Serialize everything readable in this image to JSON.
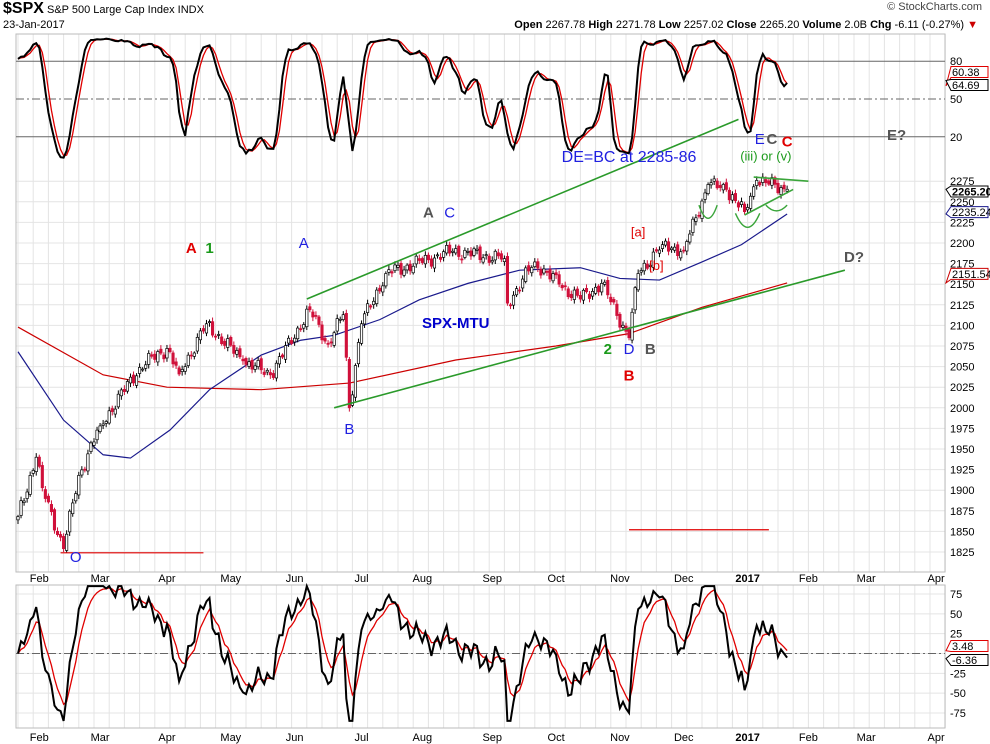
{
  "header": {
    "symbol": "$SPX",
    "name": "S&P 500 Large Cap Index",
    "exchange": "INDX",
    "date": "23-Jan-2017",
    "watermark": "© StockCharts.com",
    "open_label": "Open",
    "open": "2267.78",
    "high_label": "High",
    "high": "2271.78",
    "low_label": "Low",
    "low": "2257.02",
    "close_label": "Close",
    "close": "2265.20",
    "volume_label": "Volume",
    "volume": "2.0B",
    "chg_label": "Chg",
    "chg": "-6.11 (-0.27%)",
    "chg_arrow": "▼"
  },
  "chart_data": {
    "type": "candlestick",
    "title": "$SPX S&P 500 Large Cap Index INDX",
    "start_date": "2016-01-21",
    "holidays": [
      "2016-02-15",
      "2016-03-25",
      "2016-05-30",
      "2016-07-04",
      "2016-09-05",
      "2016-11-24",
      "2016-12-26",
      "2017-01-02",
      "2017-01-16",
      "2017-02-20"
    ],
    "price_axis": {
      "ylim": [
        1810,
        2290
      ],
      "ticks": [
        1825,
        1850,
        1875,
        1900,
        1925,
        1950,
        1975,
        2000,
        2025,
        2050,
        2075,
        2100,
        2125,
        2150,
        2175,
        2200,
        2225,
        2250,
        2275
      ]
    },
    "x_axis_labels": [
      {
        "label": "Feb",
        "date": "2016-02-01"
      },
      {
        "label": "Mar",
        "date": "2016-03-01"
      },
      {
        "label": "Apr",
        "date": "2016-04-01"
      },
      {
        "label": "May",
        "date": "2016-05-02"
      },
      {
        "label": "Jun",
        "date": "2016-06-01"
      },
      {
        "label": "Jul",
        "date": "2016-07-01"
      },
      {
        "label": "Aug",
        "date": "2016-08-01"
      },
      {
        "label": "Sep",
        "date": "2016-09-01"
      },
      {
        "label": "Oct",
        "date": "2016-10-03"
      },
      {
        "label": "Nov",
        "date": "2016-11-01"
      },
      {
        "label": "Dec",
        "date": "2016-12-01"
      },
      {
        "label": "2017",
        "date": "2017-01-03"
      },
      {
        "label": "Feb",
        "date": "2017-02-01"
      },
      {
        "label": "Mar",
        "date": "2017-03-01"
      },
      {
        "label": "Apr",
        "date": "2017-04-03"
      }
    ],
    "close_pivots": [
      [
        "2016-01-21",
        1868
      ],
      [
        "2016-01-29",
        1940
      ],
      [
        "2016-02-02",
        1903
      ],
      [
        "2016-02-11",
        1829
      ],
      [
        "2016-02-19",
        1918
      ],
      [
        "2016-03-01",
        1978
      ],
      [
        "2016-03-18",
        2049
      ],
      [
        "2016-04-01",
        2072
      ],
      [
        "2016-04-07",
        2041
      ],
      [
        "2016-04-20",
        2102
      ],
      [
        "2016-05-06",
        2057
      ],
      [
        "2016-05-19",
        2040
      ],
      [
        "2016-06-08",
        2119
      ],
      [
        "2016-06-16",
        2077
      ],
      [
        "2016-06-23",
        2113
      ],
      [
        "2016-06-27",
        2000
      ],
      [
        "2016-07-01",
        2102
      ],
      [
        "2016-07-14",
        2163
      ],
      [
        "2016-08-15",
        2190
      ],
      [
        "2016-09-08",
        2181
      ],
      [
        "2016-09-09",
        2127
      ],
      [
        "2016-09-22",
        2177
      ],
      [
        "2016-10-04",
        2150
      ],
      [
        "2016-10-13",
        2132
      ],
      [
        "2016-10-24",
        2151
      ],
      [
        "2016-11-04",
        2085
      ],
      [
        "2016-11-09",
        2163
      ],
      [
        "2016-11-21",
        2198
      ],
      [
        "2016-12-01",
        2191
      ],
      [
        "2016-12-13",
        2271
      ],
      [
        "2016-12-21",
        2265
      ],
      [
        "2016-12-30",
        2238
      ],
      [
        "2017-01-06",
        2276
      ],
      [
        "2017-01-23",
        2265.2
      ]
    ],
    "ma50": {
      "name": "50-day MA",
      "color": "#1a1a8c",
      "last": "2235.24",
      "pivots": [
        [
          "2016-01-21",
          2068
        ],
        [
          "2016-02-11",
          1985
        ],
        [
          "2016-03-02",
          1943
        ],
        [
          "2016-03-15",
          1939
        ],
        [
          "2016-04-04",
          1973
        ],
        [
          "2016-04-21",
          2022
        ],
        [
          "2016-05-16",
          2064
        ],
        [
          "2016-06-03",
          2082
        ],
        [
          "2016-06-20",
          2088
        ],
        [
          "2016-07-12",
          2107
        ],
        [
          "2016-07-29",
          2131
        ],
        [
          "2016-08-22",
          2151
        ],
        [
          "2016-09-15",
          2167
        ],
        [
          "2016-10-13",
          2170
        ],
        [
          "2016-11-01",
          2157
        ],
        [
          "2016-11-18",
          2155
        ],
        [
          "2016-12-09",
          2177
        ],
        [
          "2016-12-29",
          2198
        ],
        [
          "2017-01-23",
          2235.24
        ]
      ]
    },
    "ma200": {
      "name": "200-day MA",
      "color": "#cc0000",
      "last": "2151.54",
      "pivots": [
        [
          "2016-01-21",
          2098
        ],
        [
          "2016-03-02",
          2040
        ],
        [
          "2016-04-01",
          2025
        ],
        [
          "2016-05-16",
          2022
        ],
        [
          "2016-06-27",
          2030
        ],
        [
          "2016-08-16",
          2058
        ],
        [
          "2016-10-03",
          2075
        ],
        [
          "2016-11-04",
          2090
        ],
        [
          "2016-12-09",
          2122
        ],
        [
          "2017-01-23",
          2151.54
        ]
      ]
    },
    "last_price_label": "2265.20",
    "top_indicator": {
      "ylim": [
        0,
        100
      ],
      "levels": [
        {
          "value": 80,
          "label": "80"
        },
        {
          "value": 50,
          "label": "50"
        },
        {
          "value": 20,
          "label": "20"
        }
      ],
      "last_black": "64.69",
      "last_red": "60.38"
    },
    "bottom_indicator": {
      "ylim": [
        -90,
        90
      ],
      "ticks": [
        {
          "value": 75,
          "label": "75"
        },
        {
          "value": 50,
          "label": "50"
        },
        {
          "value": 25,
          "label": "25"
        },
        {
          "value": -25,
          "label": "-25"
        },
        {
          "value": -50,
          "label": "-50"
        },
        {
          "value": -75,
          "label": "-75"
        }
      ],
      "last_red": "3.48",
      "last_black": "-6.36"
    },
    "trendlines": [
      {
        "from": [
          "2016-06-07",
          2132
        ],
        "to": [
          "2016-12-28",
          2350
        ],
        "color": "#2a9a2a"
      },
      {
        "from": [
          "2016-06-20",
          2000
        ],
        "to": [
          "2017-02-17",
          2167
        ],
        "color": "#2a9a2a"
      },
      {
        "from": [
          "2017-01-05",
          2280
        ],
        "to": [
          "2017-02-01",
          2275
        ],
        "color": "#3aa53a"
      },
      {
        "from": [
          "2016-12-30",
          2234
        ],
        "to": [
          "2017-01-25",
          2265
        ],
        "color": "#3aa53a"
      }
    ],
    "arcs": [
      {
        "from": "2016-12-08",
        "to": "2016-12-16",
        "top": 2246,
        "bottom": 2230,
        "color": "#3aa53a"
      },
      {
        "from": "2016-12-27",
        "to": "2017-01-09",
        "top": 2236,
        "bottom": 2219,
        "color": "#3aa53a"
      },
      {
        "from": "2017-01-11",
        "to": "2017-01-23",
        "top": 2246,
        "bottom": 2239,
        "color": "#3aa53a"
      }
    ],
    "hlines": [
      {
        "from": "2016-02-10",
        "to": "2016-04-19",
        "price": 1824,
        "color": "#e00000"
      },
      {
        "from": "2016-11-04",
        "to": "2017-01-12",
        "price": 1852,
        "color": "#e00000"
      }
    ],
    "annotations": [
      {
        "text": "A",
        "date": "2016-04-13",
        "price": 2188,
        "color": "#e00000",
        "kind": "wave"
      },
      {
        "text": "1",
        "date": "2016-04-21",
        "price": 2188,
        "color": "#1a9a1a",
        "kind": "wave"
      },
      {
        "text": "A",
        "date": "2016-06-06",
        "price": 2194,
        "color": "#2020e0",
        "kind": "note"
      },
      {
        "text": "A",
        "date": "2016-08-03",
        "price": 2231,
        "color": "#555555",
        "kind": "wave"
      },
      {
        "text": "C",
        "date": "2016-08-12",
        "price": 2231,
        "color": "#2020e0",
        "kind": "note"
      },
      {
        "text": "B",
        "date": "2016-06-27",
        "price": 1968,
        "color": "#2020e0",
        "kind": "note"
      },
      {
        "text": "SPX-MTU",
        "date": "2016-08-16",
        "price": 2097,
        "color": "#0000cc",
        "kind": "wave"
      },
      {
        "text": "DE=BC  at 2285-86",
        "date": "2016-11-04",
        "price": 2298,
        "color": "#2020e0",
        "kind": "big"
      },
      {
        "text": "E",
        "date": "2017-01-09",
        "price": 2320,
        "color": "#2020e0",
        "kind": "note"
      },
      {
        "text": "C",
        "date": "2017-01-13",
        "price": 2320,
        "color": "#555555",
        "kind": "wave"
      },
      {
        "text": "C",
        "date": "2017-01-23",
        "price": 2317,
        "color": "#e00000",
        "kind": "wave"
      },
      {
        "text": "E?",
        "date": "2017-03-15",
        "price": 2325,
        "color": "#555555",
        "kind": "wave"
      },
      {
        "text": "(iii) or (v)",
        "date": "2017-01-11",
        "price": 2300,
        "color": "#1a9a1a",
        "kind": "small"
      },
      {
        "text": "[a]",
        "date": "2016-11-09",
        "price": 2208,
        "color": "#e00000",
        "kind": "small"
      },
      {
        "text": "[b]",
        "date": "2016-11-17",
        "price": 2167,
        "color": "#e00000",
        "kind": "small"
      },
      {
        "text": "2",
        "date": "2016-10-26",
        "price": 2065,
        "color": "#1a9a1a",
        "kind": "wave"
      },
      {
        "text": "D",
        "date": "2016-11-04",
        "price": 2065,
        "color": "#2020e0",
        "kind": "note"
      },
      {
        "text": "B",
        "date": "2016-11-15",
        "price": 2065,
        "color": "#555555",
        "kind": "wave"
      },
      {
        "text": "B",
        "date": "2016-11-04",
        "price": 2033,
        "color": "#e00000",
        "kind": "wave"
      },
      {
        "text": "D?",
        "date": "2017-02-23",
        "price": 2177,
        "color": "#555555",
        "kind": "wave"
      },
      {
        "text": "O",
        "date": "2016-02-18",
        "price": 1813,
        "color": "#2020e0",
        "kind": "note"
      }
    ]
  }
}
